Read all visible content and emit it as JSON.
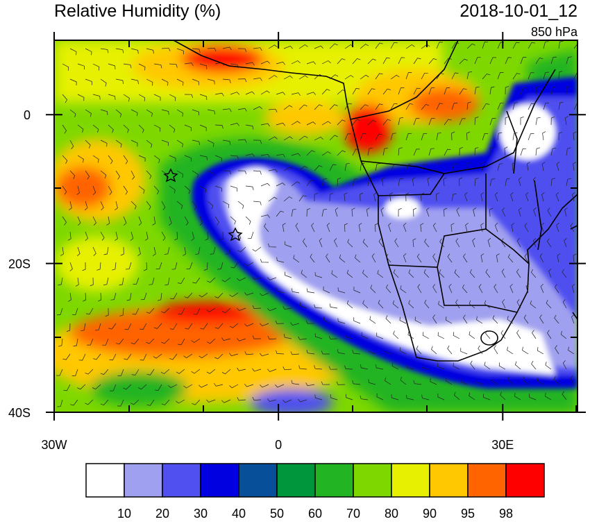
{
  "header": {
    "title": "Relative Humidity (%)",
    "valid_time": "2018-10-01_12",
    "level": "850 hPa"
  },
  "map": {
    "lonlim": [
      -30,
      40
    ],
    "latlim": [
      -40,
      10
    ],
    "lon_ticks": [
      {
        "value": -30,
        "label": "30W"
      },
      0,
      {
        "value": 30,
        "label": "30E"
      }
    ],
    "lat_ticks": [
      0,
      {
        "value": -20,
        "label": "20S"
      },
      {
        "value": -40,
        "label": "40S"
      }
    ]
  },
  "colorbar": {
    "colors": [
      "#ffffff",
      "#a0a0f0",
      "#5050f0",
      "#0000e0",
      "#084f99",
      "#00963c",
      "#22b422",
      "#7ed800",
      "#e6f000",
      "#ffc800",
      "#ff6400",
      "#ff0000"
    ],
    "levels": [
      10,
      20,
      30,
      40,
      50,
      60,
      70,
      80,
      90,
      95,
      98
    ]
  }
}
